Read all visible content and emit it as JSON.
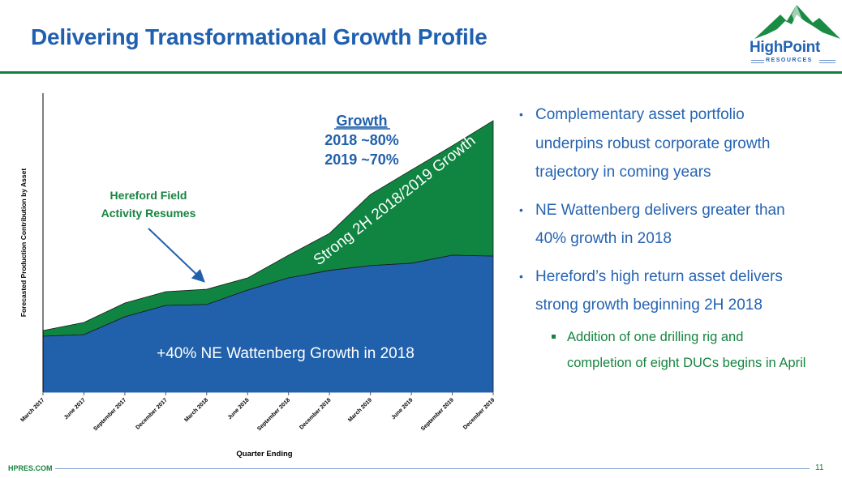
{
  "header": {
    "title": "Delivering Transformational Growth Profile",
    "logo_name": "HighPoint",
    "logo_sub": "RESOURCES"
  },
  "colors": {
    "brand_blue": "#2563b2",
    "brand_green": "#16843f",
    "ne_wattenberg_fill": "#2161ac",
    "hereford_fill": "#0f8541"
  },
  "chart_data": {
    "type": "area",
    "stacked": true,
    "title": "",
    "xlabel": "Quarter Ending",
    "ylabel": "Forecasted Production Contribution by Asset",
    "y_units": "relative (no tick labels shown)",
    "ylim": [
      0,
      100
    ],
    "grid": false,
    "categories": [
      "March 2017",
      "June 2017",
      "September 2017",
      "December 2017",
      "March 2018",
      "June 2018",
      "September 2018",
      "December 2018",
      "March 2019",
      "June 2019",
      "September 2019",
      "December 2019"
    ],
    "series": [
      {
        "name": "NE Wattenberg",
        "values": [
          18.7,
          19.2,
          25.2,
          29.0,
          29.3,
          34.1,
          38.2,
          40.7,
          42.3,
          43.1,
          45.8,
          45.5
        ]
      },
      {
        "name": "Hereford",
        "values": [
          1.9,
          4.1,
          4.6,
          4.6,
          5.1,
          4.1,
          7.6,
          12.4,
          23.8,
          31.2,
          36.6,
          45.3
        ]
      }
    ],
    "annotations": {
      "growth_heading": "Growth",
      "growth_2018": "2018 ~80%",
      "growth_2019": "2019 ~70%",
      "hereford_line1": "Hereford Field",
      "hereford_line2": "Activity Resumes",
      "strong_growth": "Strong 2H 2018/2019 Growth",
      "ne_wattenberg": "+40% NE Wattenberg Growth in 2018"
    }
  },
  "bullets": [
    {
      "lines": [
        "Complementary asset portfolio",
        "underpins robust corporate growth",
        "trajectory in coming years"
      ]
    },
    {
      "lines": [
        "NE Wattenberg delivers greater than",
        "40% growth in 2018"
      ]
    },
    {
      "lines": [
        "Hereford’s high return asset delivers",
        "strong growth beginning 2H 2018"
      ]
    }
  ],
  "sub_bullets": [
    {
      "lines": [
        "Addition of one drilling rig and",
        "completion of eight DUCs begins in April"
      ]
    }
  ],
  "footer": {
    "site": "HPRES.COM",
    "page": "11"
  }
}
